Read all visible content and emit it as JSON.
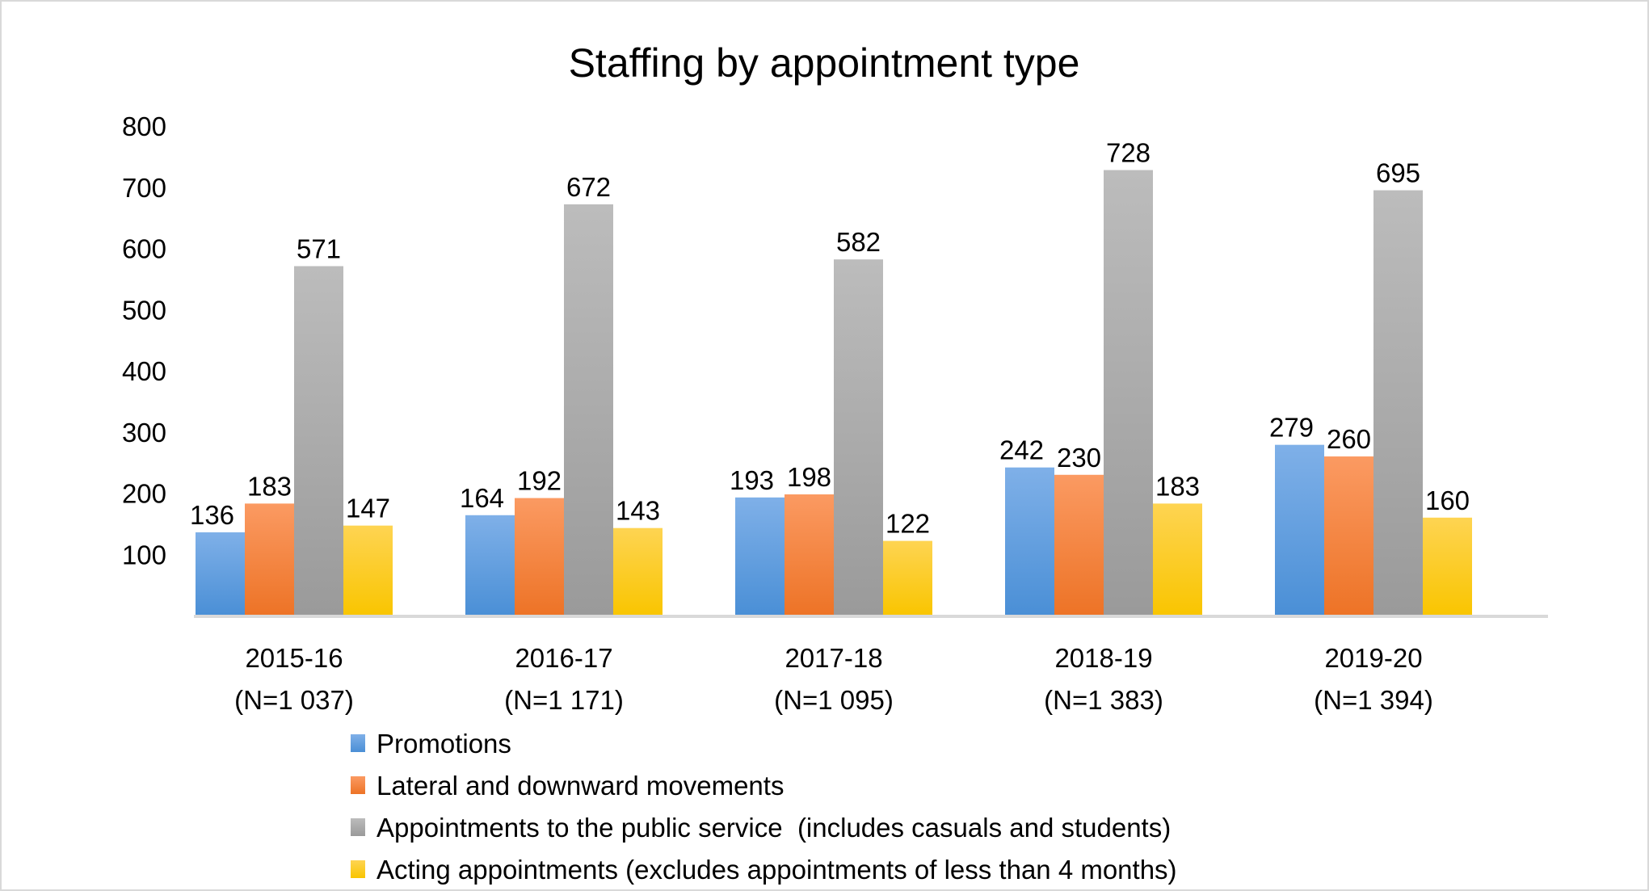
{
  "chart_data": {
    "type": "bar",
    "title": "Staffing by appointment type",
    "xlabel": "",
    "ylabel": "",
    "ylim": [
      0,
      800
    ],
    "yticks": [
      100,
      200,
      300,
      400,
      500,
      600,
      700,
      800
    ],
    "grid": false,
    "legend_position": "bottom",
    "categories": [
      {
        "line1": "2015-16",
        "line2": "(N=1 037)"
      },
      {
        "line1": "2016-17",
        "line2": "(N=1 171)"
      },
      {
        "line1": "2017-18",
        "line2": "(N=1 095)"
      },
      {
        "line1": "2018-19",
        "line2": "(N=1 383)"
      },
      {
        "line1": "2019-20",
        "line2": "(N=1 394)"
      }
    ],
    "series": [
      {
        "name": "Promotions",
        "values": [
          136,
          164,
          193,
          242,
          279
        ],
        "color_top": "#7fb0e8",
        "color_bottom": "#4a8fd6"
      },
      {
        "name": "Lateral and downward movements",
        "values": [
          183,
          192,
          198,
          230,
          260
        ],
        "color_top": "#fb9a62",
        "color_bottom": "#ed7326"
      },
      {
        "name": "Appointments to the public service  (includes casuals and students)",
        "values": [
          571,
          672,
          582,
          728,
          695
        ],
        "color_top": "#bcbcbc",
        "color_bottom": "#9a9a9a"
      },
      {
        "name": "Acting appointments (excludes appointments of less than 4 months)",
        "values": [
          147,
          143,
          122,
          183,
          160
        ],
        "color_top": "#fed452",
        "color_bottom": "#f9c500"
      }
    ]
  }
}
